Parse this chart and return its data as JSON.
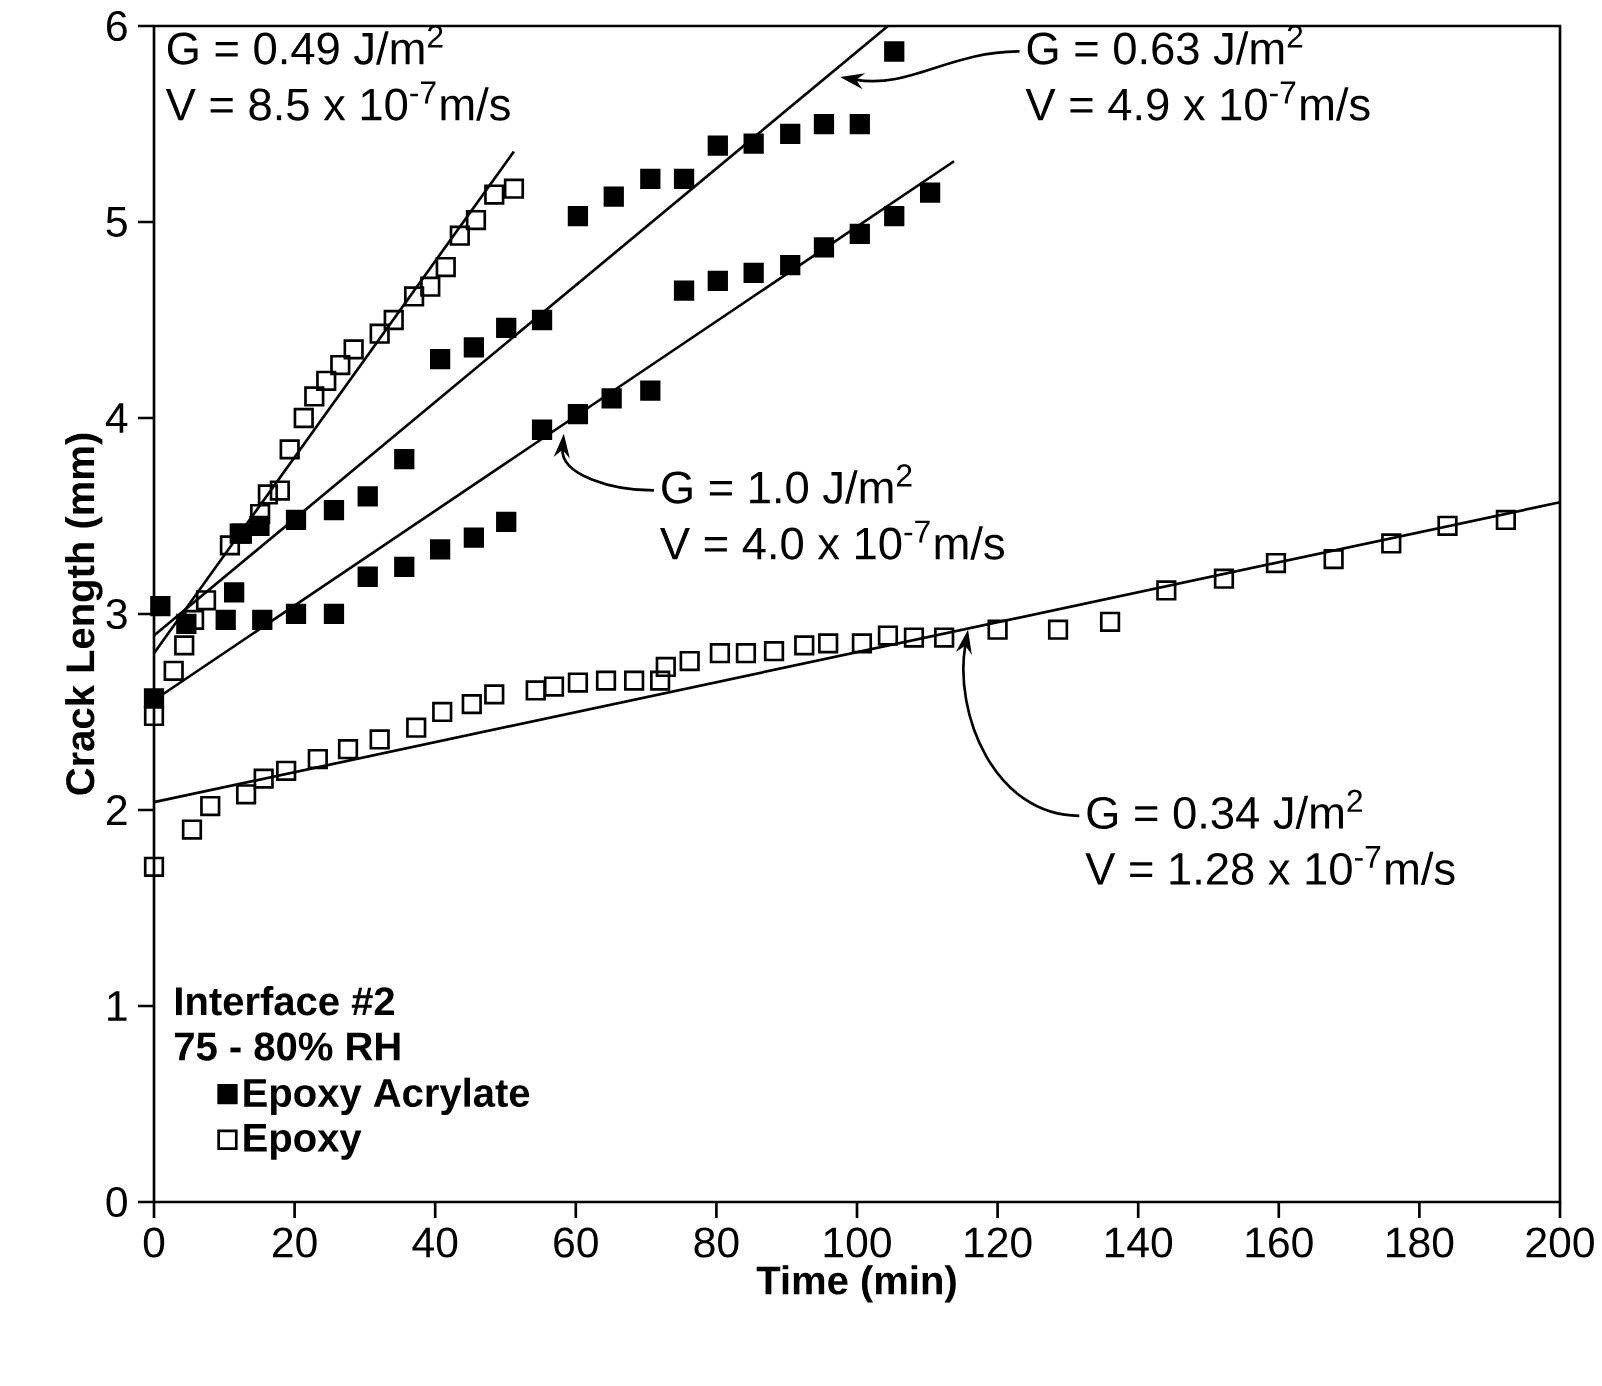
{
  "chart_data": {
    "type": "scatter",
    "xlabel": "Time (min)",
    "ylabel": "Crack Length (mm)",
    "legend_title": "Interface #2",
    "xlim": [
      0,
      200
    ],
    "xticks": [
      0,
      20,
      40,
      60,
      80,
      100,
      120,
      140,
      160,
      180,
      200
    ],
    "ylim": [
      0,
      6
    ],
    "yticks": [
      0,
      1,
      2,
      3,
      4,
      5,
      6
    ],
    "grid": false,
    "legend": "bottom left",
    "marker": "square",
    "series": [
      {
        "name": "Epoxy Acrylate",
        "color": "#000000",
        "x": [
          0,
          10.2,
          15.4,
          20.2,
          25.6,
          30.4,
          35.6,
          40.7,
          45.5,
          50.1,
          55.2,
          60.3,
          65.1,
          70.6,
          75.4,
          80.2,
          85.3,
          90.5,
          95.3,
          100.4,
          105.3,
          110.4,
          0.9,
          4.6,
          11.4,
          12.5,
          15,
          20.2,
          25.6,
          30.4,
          35.6,
          40.7,
          45.5,
          50.1,
          55.2,
          60.3,
          65.4,
          70.6,
          75.4,
          80.2,
          85.3,
          90.5,
          95.3,
          100.4,
          105.3
        ],
        "values": [
          2.57,
          2.97,
          2.97,
          3.0,
          3.0,
          3.19,
          3.24,
          3.33,
          3.39,
          3.47,
          3.94,
          4.02,
          4.1,
          4.14,
          4.65,
          4.7,
          4.74,
          4.78,
          4.87,
          4.94,
          5.03,
          5.15,
          3.04,
          2.95,
          3.11,
          3.41,
          3.45,
          3.48,
          3.53,
          3.6,
          3.79,
          4.3,
          4.36,
          4.46,
          4.5,
          5.03,
          5.13,
          5.22,
          5.22,
          5.39,
          5.4,
          5.45,
          5.5,
          5.5,
          5.87
        ]
      },
      {
        "name": "Epoxy",
        "color": "#000000",
        "x": [
          0,
          0,
          2.8,
          4.3,
          5.7,
          7.4,
          10.8,
          12.2,
          15.1,
          16.2,
          17.9,
          19.3,
          21.3,
          22.8,
          24.5,
          26.5,
          28.4,
          32.1,
          34.1,
          37,
          39.3,
          41.5,
          43.5,
          45.8,
          48.4,
          51.2,
          5.4,
          8,
          13.1,
          15.6,
          18.8,
          23.3,
          27.6,
          32.1,
          37.3,
          41,
          45.2,
          48.4,
          54.3,
          56.9,
          60.3,
          64.3,
          68.3,
          72,
          72.8,
          76.2,
          80.5,
          84.2,
          88.2,
          92.5,
          95.9,
          100.7,
          104.4,
          108.1,
          112.4,
          120,
          128.6,
          136,
          144,
          152.2,
          159.6,
          167.8,
          176,
          184,
          192.3
        ],
        "values": [
          2.48,
          1.71,
          2.71,
          2.84,
          2.97,
          3.07,
          3.35,
          3.41,
          3.51,
          3.61,
          3.63,
          3.84,
          4.0,
          4.11,
          4.19,
          4.27,
          4.35,
          4.43,
          4.5,
          4.62,
          4.67,
          4.77,
          4.93,
          5.01,
          5.14,
          5.17,
          1.9,
          2.02,
          2.08,
          2.16,
          2.2,
          2.26,
          2.31,
          2.36,
          2.42,
          2.5,
          2.54,
          2.59,
          2.61,
          2.63,
          2.65,
          2.66,
          2.66,
          2.66,
          2.73,
          2.76,
          2.8,
          2.8,
          2.81,
          2.84,
          2.85,
          2.85,
          2.89,
          2.88,
          2.88,
          2.92,
          2.92,
          2.96,
          3.12,
          3.18,
          3.26,
          3.28,
          3.36,
          3.45,
          3.48
        ]
      },
      {
        "type": "line",
        "color": "#000000",
        "marker": "none",
        "x": [
          0,
          51.2
        ],
        "values": [
          2.8,
          5.36
        ]
      },
      {
        "type": "line",
        "color": "#000000",
        "marker": "none",
        "x": [
          0,
          104.4
        ],
        "values": [
          2.89,
          6.0
        ]
      },
      {
        "type": "line",
        "color": "#000000",
        "marker": "none",
        "x": [
          0,
          113.8
        ],
        "values": [
          2.56,
          5.31
        ]
      },
      {
        "type": "line",
        "color": "#000000",
        "marker": "none",
        "x": [
          0,
          200
        ],
        "values": [
          2.04,
          3.57
        ]
      }
    ],
    "annotations": [
      "G = 0.49 J/m$^{2}$",
      "V = 8.5 x 10$^{-7}$m/s",
      {
        "text": "G = 0.63 J/m$^{2}$",
        "x": 97.6,
        "y": 5.74
      },
      "V = 4.9 x 10$^{-7}$m/s",
      {
        "text": "G = 1.0 J/m$^{2}$",
        "x": 58.3,
        "y": 3.92
      },
      "V = 4.0 x 10$^{-7}$m/s",
      {
        "text": "G = 0.34 J/m$^{2}$",
        "x": 115.8,
        "y": 2.92
      },
      "V = 1.28 x 10$^{-7}$m/s",
      "75 - 80% RH"
    ]
  }
}
